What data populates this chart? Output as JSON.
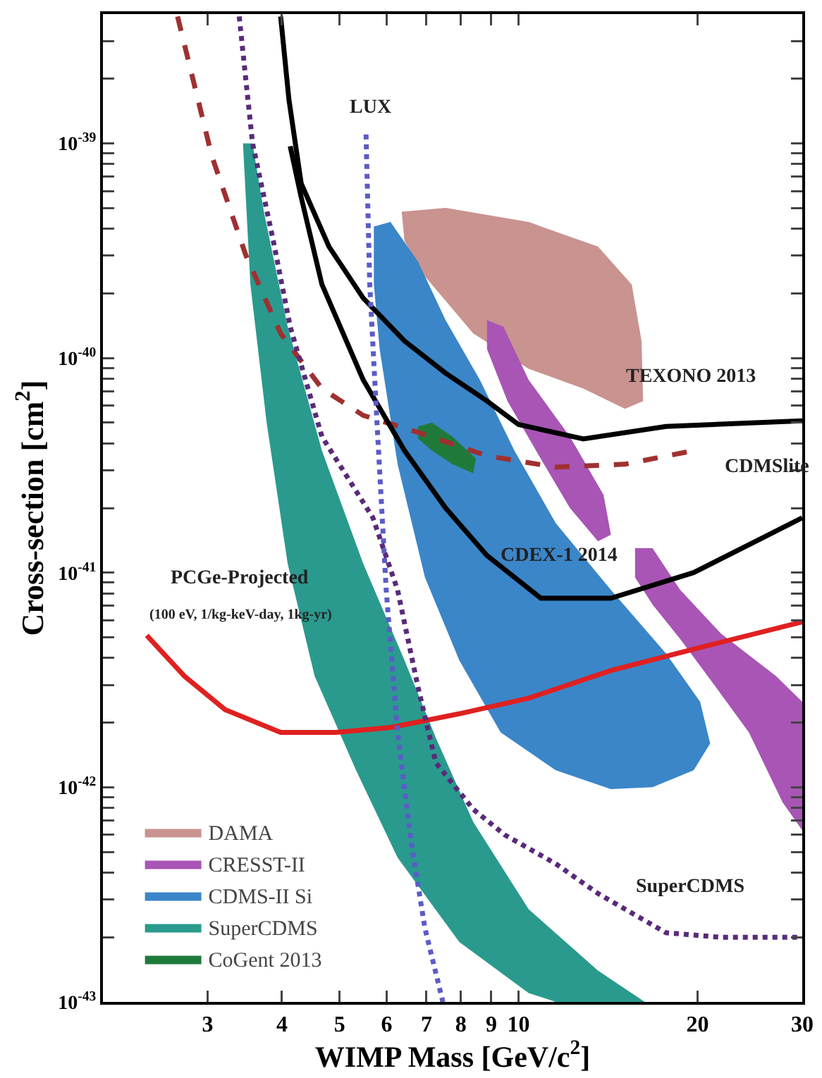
{
  "chart_data": {
    "type": "line",
    "xlabel": "WIMP Mass [GeV/c$^{2}$]",
    "ylabel": "Cross-section [cm$^{2}$]",
    "log": "xy",
    "grid": false,
    "legend": "bottom left",
    "marker": "none",
    "xlim": [
      2,
      30
    ],
    "xticks": [
      3,
      4,
      5,
      6,
      7,
      8,
      9,
      10,
      20,
      30
    ],
    "ylim": [
      1e-43,
      4e-39
    ],
    "yticks": [
      {
        "value": 1e-43,
        "label": "10$^{-43}$"
      },
      {
        "value": 2e-43,
        "label": null
      },
      {
        "value": 3e-43,
        "label": null
      },
      {
        "value": 4e-43,
        "label": null
      },
      {
        "value": 5e-43,
        "label": null
      },
      {
        "value": 6e-43,
        "label": null
      },
      {
        "value": 7e-43,
        "label": null
      },
      {
        "value": 8e-43,
        "label": null
      },
      {
        "value": 9e-43,
        "label": null
      },
      {
        "value": 1e-42,
        "label": "10$^{-42}$"
      },
      {
        "value": 2e-42,
        "label": null
      },
      {
        "value": 3e-42,
        "label": null
      },
      {
        "value": 4e-42,
        "label": null
      },
      {
        "value": 5e-42,
        "label": null
      },
      {
        "value": 6e-42,
        "label": null
      },
      {
        "value": 7e-42,
        "label": null
      },
      {
        "value": 8e-42,
        "label": null
      },
      {
        "value": 9e-42,
        "label": null
      },
      {
        "value": 1e-41,
        "label": "10$^{-41}$"
      },
      {
        "value": 2e-41,
        "label": null
      },
      {
        "value": 3e-41,
        "label": null
      },
      {
        "value": 4e-41,
        "label": null
      },
      {
        "value": 5e-41,
        "label": null
      },
      {
        "value": 6e-41,
        "label": null
      },
      {
        "value": 7e-41,
        "label": null
      },
      {
        "value": 8e-41,
        "label": null
      },
      {
        "value": 9e-41,
        "label": null
      },
      {
        "value": 1e-40,
        "label": "10$^{-40}$"
      },
      {
        "value": 2e-40,
        "label": null
      },
      {
        "value": 3e-40,
        "label": null
      },
      {
        "value": 4e-40,
        "label": null
      },
      {
        "value": 5e-40,
        "label": null
      },
      {
        "value": 6e-40,
        "label": null
      },
      {
        "value": 7e-40,
        "label": null
      },
      {
        "value": 8e-40,
        "label": null
      },
      {
        "value": 9e-40,
        "label": null
      },
      {
        "value": 1e-39,
        "label": "10$^{-39}$"
      },
      {
        "value": 2e-39,
        "label": null
      },
      {
        "value": 3e-39,
        "label": null
      }
    ],
    "series": [
      {
        "type": "area",
        "name": "DAMA",
        "color": "#c9938f",
        "x": [
          6.36,
          7.54,
          10.4,
          13.6,
          15.5,
          16.1,
          16.2,
          15.1,
          12.85,
          10.4,
          8.39,
          6.96,
          6.43
        ],
        "values": [
          4.8e-40,
          5e-40,
          4.3e-40,
          3.3e-40,
          2.2e-40,
          1.2e-40,
          6.3e-41,
          5.8e-41,
          7.2e-41,
          8.9e-41,
          1.3e-40,
          2.4e-40,
          3.5e-40
        ]
      },
      {
        "type": "area",
        "name": "CRESST-II",
        "color": "#a855b5",
        "x": [
          8.85,
          9.43,
          10.4,
          12.2,
          13.9,
          14.3,
          13.6,
          12.2,
          10.7,
          9.58,
          8.85,
          null,
          15.7,
          16.8,
          18.7,
          21.9,
          27.1,
          30,
          30,
          27.8,
          24.4,
          20.8,
          18.7,
          16.8,
          15.7
        ],
        "values": [
          1.5e-40,
          1.4e-40,
          7.9e-41,
          4.3e-41,
          2.3e-41,
          1.5e-41,
          1.4e-41,
          2e-41,
          3.7e-41,
          6.3e-41,
          1.1e-40,
          null,
          1.3e-41,
          1.3e-41,
          8.3e-42,
          5.2e-42,
          3.3e-42,
          2.5e-42,
          6.3e-43,
          8.5e-43,
          1.8e-42,
          3.3e-42,
          4.9e-42,
          7.1e-42,
          9.5e-42
        ]
      },
      {
        "type": "area",
        "name": "CDMS-II Si",
        "color": "#3b86c8",
        "x": [
          5.71,
          6.09,
          6.78,
          7.54,
          8.61,
          9.84,
          11.55,
          14.3,
          17.7,
          20.2,
          21.0,
          19.7,
          16.8,
          14.3,
          11.55,
          9.33,
          7.95,
          6.96,
          6.26,
          5.84,
          5.71
        ],
        "values": [
          4.1e-40,
          4.3e-40,
          2.8e-40,
          1.5e-40,
          7.9e-41,
          3.7e-41,
          1.7e-41,
          8.3e-42,
          4.2e-42,
          2.5e-42,
          1.6e-42,
          1.2e-42,
          1e-42,
          9.8e-43,
          1.2e-42,
          1.8e-42,
          3.9e-42,
          9.5e-42,
          3.2e-41,
          1.1e-40,
          2.2e-40
        ]
      },
      {
        "type": "area",
        "name": "SuperCDMS",
        "color": "#2a9a8e",
        "x": [
          3.44,
          3.54,
          3.77,
          4.09,
          4.54,
          5.33,
          6.26,
          7.95,
          10.4,
          11.55,
          16.3,
          13.6,
          10.4,
          8.39,
          7.26,
          6.43,
          5.48,
          4.67,
          4.09,
          3.73,
          3.57
        ],
        "values": [
          1e-39,
          2.2e-40,
          5e-41,
          1.1e-41,
          3.3e-42,
          1.2e-42,
          4.7e-43,
          1.9e-43,
          1.1e-43,
          1e-43,
          1e-43,
          1.4e-43,
          2.7e-43,
          6.9e-43,
          1.7e-42,
          3.9e-42,
          1.1e-41,
          3.7e-41,
          1.4e-40,
          4.8e-40,
          1e-39
        ]
      },
      {
        "type": "area",
        "name": "CoGent 2013",
        "color": "#1f7a3a",
        "x": [
          6.78,
          7.15,
          7.74,
          8.48,
          8.39,
          7.74,
          7.15,
          6.78
        ],
        "values": [
          4.8e-41,
          5e-41,
          4.3e-41,
          3.4e-41,
          2.9e-41,
          3.2e-41,
          3.7e-41,
          4.2e-41
        ]
      },
      {
        "type": "line",
        "line_style": "dashed",
        "color": "#a03030",
        "x": [
          2.67,
          3.05,
          3.48,
          3.98,
          4.67,
          5.48,
          6.78,
          8.85,
          11.55,
          15.1,
          19.7
        ],
        "values": [
          3.9e-39,
          8.7e-40,
          3e-40,
          1.3e-40,
          7.2e-41,
          5.4e-41,
          4.5e-41,
          3.5e-41,
          3.1e-41,
          3.2e-41,
          3.7e-41
        ]
      },
      {
        "type": "line",
        "line_style": "solid",
        "color": "#000000",
        "x": [
          3.98,
          4.11,
          4.31,
          4.8,
          5.48,
          6.43,
          7.54,
          8.85,
          10,
          12.85,
          17.7,
          30
        ],
        "values": [
          3.9e-39,
          1.6e-39,
          6.5e-40,
          3.3e-40,
          1.9e-40,
          1.2e-40,
          8.5e-41,
          6.3e-41,
          4.9e-41,
          4.2e-41,
          4.8e-41,
          5.1e-41
        ]
      },
      {
        "type": "line",
        "line_style": "solid",
        "color": "#000000",
        "x": [
          4.13,
          4.31,
          4.67,
          5.48,
          6.43,
          7.54,
          8.85,
          10.9,
          14.3,
          19.7,
          30
        ],
        "values": [
          9.7e-40,
          5.6e-40,
          2.2e-40,
          7.9e-41,
          3.7e-41,
          2e-41,
          1.2e-41,
          7.6e-42,
          7.6e-42,
          1e-41,
          1.8e-41
        ]
      },
      {
        "type": "line",
        "line_style": "solid",
        "color": "#e02020",
        "x": [
          2.37,
          2.74,
          3.21,
          3.98,
          4.92,
          6.09,
          7.95,
          10.4,
          14.3,
          19.7,
          30
        ],
        "values": [
          5.1e-42,
          3.3e-42,
          2.3e-42,
          1.8e-42,
          1.8e-42,
          1.9e-42,
          2.2e-42,
          2.6e-42,
          3.5e-42,
          4.4e-42,
          5.9e-42
        ]
      },
      {
        "type": "line",
        "line_style": "dotted",
        "color": "#5b5bc8",
        "x": [
          5.54,
          5.62,
          5.78,
          5.99,
          6.26,
          6.6,
          6.96,
          7.46
        ],
        "values": [
          1.1e-39,
          2.2e-40,
          5e-41,
          8.3e-42,
          1.8e-42,
          5.5e-43,
          2.2e-43,
          1e-43
        ]
      },
      {
        "type": "line",
        "line_style": "dotted",
        "color": "#5a2a7a",
        "x": [
          3.39,
          3.57,
          3.87,
          4.13,
          4.67,
          5.69,
          6.26,
          6.78,
          7.26,
          8.39,
          9.48,
          11.55,
          13.6,
          17.7,
          21.9,
          30
        ],
        "values": [
          3.9e-39,
          1e-39,
          3.5e-40,
          1.4e-40,
          4.3e-41,
          1.8e-41,
          8.3e-42,
          2.9e-42,
          1.3e-42,
          7.9e-43,
          6e-43,
          4.4e-43,
          3.2e-43,
          2.1e-43,
          2e-43,
          2e-43
        ]
      }
    ],
    "annotations": [
      "LUX",
      "TEXONO 2013",
      "CDMSlite",
      "CDEX-1 2014",
      "PCGe-Projected",
      "(100 eV, 1/kg-keV-day, 1kg-yr)",
      "SuperCDMS"
    ]
  }
}
